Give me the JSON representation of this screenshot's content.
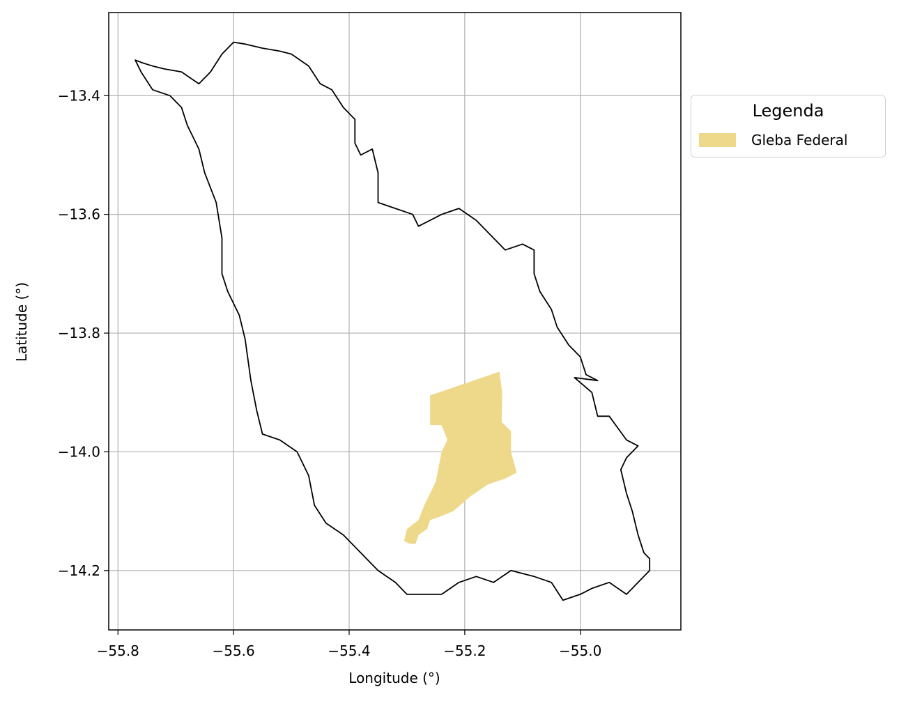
{
  "chart_data": {
    "type": "map",
    "xlabel": "Longitude (°)",
    "ylabel": "Latitude (°)",
    "xlim": [
      -55.816,
      -54.826
    ],
    "ylim": [
      -14.3,
      -13.26
    ],
    "x_ticks": [
      -55.8,
      -55.6,
      -55.4,
      -55.2,
      -55.0
    ],
    "x_tick_labels": [
      "−55.8",
      "−55.6",
      "−55.4",
      "−55.2",
      "−55.0"
    ],
    "y_ticks": [
      -13.4,
      -13.6,
      -13.8,
      -14.0,
      -14.2
    ],
    "y_tick_labels": [
      "−13.4",
      "−13.6",
      "−13.8",
      "−14.0",
      "−14.2"
    ],
    "grid": true,
    "legend": {
      "title": "Legenda",
      "placement": "outside-right-top",
      "entries": [
        {
          "label": "Gleba Federal",
          "color": "#eed88a"
        }
      ]
    },
    "boundary": {
      "edge_color": "#000000",
      "fill": "none",
      "coordinates": [
        [
          -55.77,
          -13.34
        ],
        [
          -55.757,
          -13.345
        ],
        [
          -55.74,
          -13.35
        ],
        [
          -55.72,
          -13.355
        ],
        [
          -55.69,
          -13.36
        ],
        [
          -55.66,
          -13.38
        ],
        [
          -55.64,
          -13.36
        ],
        [
          -55.62,
          -13.33
        ],
        [
          -55.6,
          -13.31
        ],
        [
          -55.58,
          -13.313
        ],
        [
          -55.55,
          -13.32
        ],
        [
          -55.52,
          -13.325
        ],
        [
          -55.5,
          -13.33
        ],
        [
          -55.47,
          -13.35
        ],
        [
          -55.45,
          -13.38
        ],
        [
          -55.43,
          -13.39
        ],
        [
          -55.41,
          -13.42
        ],
        [
          -55.39,
          -13.44
        ],
        [
          -55.39,
          -13.48
        ],
        [
          -55.38,
          -13.5
        ],
        [
          -55.36,
          -13.49
        ],
        [
          -55.35,
          -13.53
        ],
        [
          -55.35,
          -13.58
        ],
        [
          -55.32,
          -13.59
        ],
        [
          -55.29,
          -13.6
        ],
        [
          -55.28,
          -13.62
        ],
        [
          -55.26,
          -13.61
        ],
        [
          -55.24,
          -13.6
        ],
        [
          -55.21,
          -13.59
        ],
        [
          -55.18,
          -13.61
        ],
        [
          -55.15,
          -13.64
        ],
        [
          -55.13,
          -13.66
        ],
        [
          -55.1,
          -13.65
        ],
        [
          -55.08,
          -13.66
        ],
        [
          -55.08,
          -13.7
        ],
        [
          -55.07,
          -13.73
        ],
        [
          -55.05,
          -13.76
        ],
        [
          -55.04,
          -13.79
        ],
        [
          -55.02,
          -13.82
        ],
        [
          -55.0,
          -13.84
        ],
        [
          -54.99,
          -13.87
        ],
        [
          -54.97,
          -13.88
        ],
        [
          -55.01,
          -13.875
        ],
        [
          -54.98,
          -13.9
        ],
        [
          -54.97,
          -13.94
        ],
        [
          -54.95,
          -13.94
        ],
        [
          -54.92,
          -13.98
        ],
        [
          -54.9,
          -13.99
        ],
        [
          -54.92,
          -14.01
        ],
        [
          -54.93,
          -14.03
        ],
        [
          -54.92,
          -14.07
        ],
        [
          -54.91,
          -14.1
        ],
        [
          -54.9,
          -14.14
        ],
        [
          -54.89,
          -14.17
        ],
        [
          -54.88,
          -14.18
        ],
        [
          -54.88,
          -14.2
        ],
        [
          -54.9,
          -14.22
        ],
        [
          -54.92,
          -14.24
        ],
        [
          -54.95,
          -14.22
        ],
        [
          -54.98,
          -14.23
        ],
        [
          -55.0,
          -14.24
        ],
        [
          -55.03,
          -14.25
        ],
        [
          -55.05,
          -14.22
        ],
        [
          -55.08,
          -14.21
        ],
        [
          -55.12,
          -14.2
        ],
        [
          -55.15,
          -14.22
        ],
        [
          -55.18,
          -14.21
        ],
        [
          -55.21,
          -14.22
        ],
        [
          -55.24,
          -14.24
        ],
        [
          -55.27,
          -14.24
        ],
        [
          -55.3,
          -14.24
        ],
        [
          -55.32,
          -14.22
        ],
        [
          -55.35,
          -14.2
        ],
        [
          -55.38,
          -14.17
        ],
        [
          -55.41,
          -14.14
        ],
        [
          -55.44,
          -14.12
        ],
        [
          -55.46,
          -14.09
        ],
        [
          -55.47,
          -14.04
        ],
        [
          -55.49,
          -14.0
        ],
        [
          -55.52,
          -13.98
        ],
        [
          -55.55,
          -13.97
        ],
        [
          -55.56,
          -13.93
        ],
        [
          -55.57,
          -13.88
        ],
        [
          -55.58,
          -13.81
        ],
        [
          -55.59,
          -13.77
        ],
        [
          -55.61,
          -13.73
        ],
        [
          -55.62,
          -13.7
        ],
        [
          -55.62,
          -13.64
        ],
        [
          -55.63,
          -13.58
        ],
        [
          -55.65,
          -13.53
        ],
        [
          -55.66,
          -13.49
        ],
        [
          -55.68,
          -13.45
        ],
        [
          -55.69,
          -13.42
        ],
        [
          -55.71,
          -13.4
        ],
        [
          -55.74,
          -13.39
        ],
        [
          -55.76,
          -13.36
        ],
        [
          -55.77,
          -13.34
        ]
      ]
    },
    "polygons": [
      {
        "name": "Gleba Federal",
        "fill": "#eed88a",
        "coordinates": [
          [
            -55.26,
            -13.905
          ],
          [
            -55.14,
            -13.865
          ],
          [
            -55.135,
            -13.9
          ],
          [
            -55.136,
            -13.95
          ],
          [
            -55.12,
            -13.965
          ],
          [
            -55.12,
            -14.0
          ],
          [
            -55.11,
            -14.035
          ],
          [
            -55.13,
            -14.045
          ],
          [
            -55.16,
            -14.055
          ],
          [
            -55.19,
            -14.075
          ],
          [
            -55.22,
            -14.1
          ],
          [
            -55.245,
            -14.11
          ],
          [
            -55.26,
            -14.115
          ],
          [
            -55.265,
            -14.13
          ],
          [
            -55.28,
            -14.14
          ],
          [
            -55.285,
            -14.155
          ],
          [
            -55.295,
            -14.155
          ],
          [
            -55.305,
            -14.15
          ],
          [
            -55.3,
            -14.13
          ],
          [
            -55.28,
            -14.115
          ],
          [
            -55.27,
            -14.09
          ],
          [
            -55.25,
            -14.05
          ],
          [
            -55.24,
            -14.0
          ],
          [
            -55.23,
            -13.98
          ],
          [
            -55.24,
            -13.955
          ],
          [
            -55.26,
            -13.955
          ],
          [
            -55.26,
            -13.905
          ]
        ]
      }
    ]
  }
}
